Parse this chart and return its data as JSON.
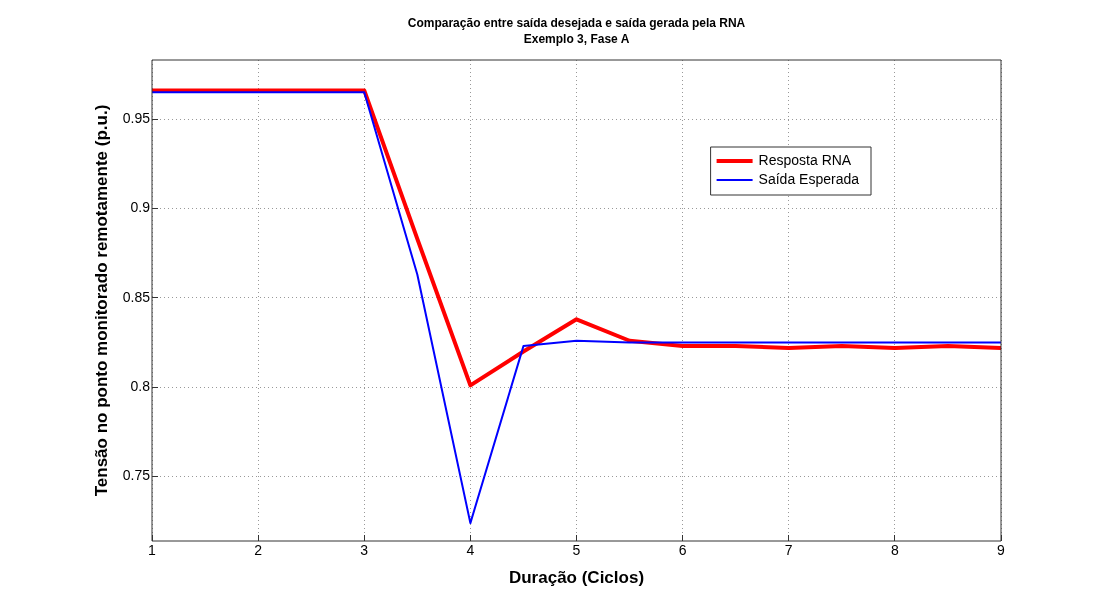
{
  "chart_data": {
    "type": "line",
    "title": "Comparação entre saída desejada e saída gerada pela RNA",
    "subtitle": "Exemplo 3, Fase A",
    "xlabel": "Duração (Ciclos)",
    "ylabel": "Tensão no ponto monitorado remotamente (p.u.)",
    "x": [
      1,
      1.5,
      2,
      2.5,
      3,
      3.5,
      4,
      4.5,
      5,
      5.5,
      6,
      6.5,
      7,
      7.5,
      8,
      8.5,
      9
    ],
    "series": [
      {
        "name": "Resposta RNA",
        "color": "#ff0000",
        "values": [
          0.966,
          0.966,
          0.966,
          0.966,
          0.966,
          0.883,
          0.801,
          0.82,
          0.838,
          0.826,
          0.823,
          0.823,
          0.822,
          0.823,
          0.822,
          0.823,
          0.822
        ]
      },
      {
        "name": "Saída Esperada",
        "color": "#0000ff",
        "values": [
          0.965,
          0.965,
          0.965,
          0.965,
          0.965,
          0.863,
          0.724,
          0.823,
          0.826,
          0.825,
          0.825,
          0.825,
          0.825,
          0.825,
          0.825,
          0.825,
          0.825
        ]
      }
    ],
    "xlim": [
      1,
      9
    ],
    "xticks": [
      1,
      2,
      3,
      4,
      5,
      6,
      7,
      8,
      9
    ],
    "ylim": [
      0.714,
      0.983
    ],
    "yticks": [
      0.75,
      0.8,
      0.85,
      0.9,
      0.95
    ],
    "grid": true,
    "legend": "top right",
    "marker": "none",
    "line_style": "solid"
  }
}
